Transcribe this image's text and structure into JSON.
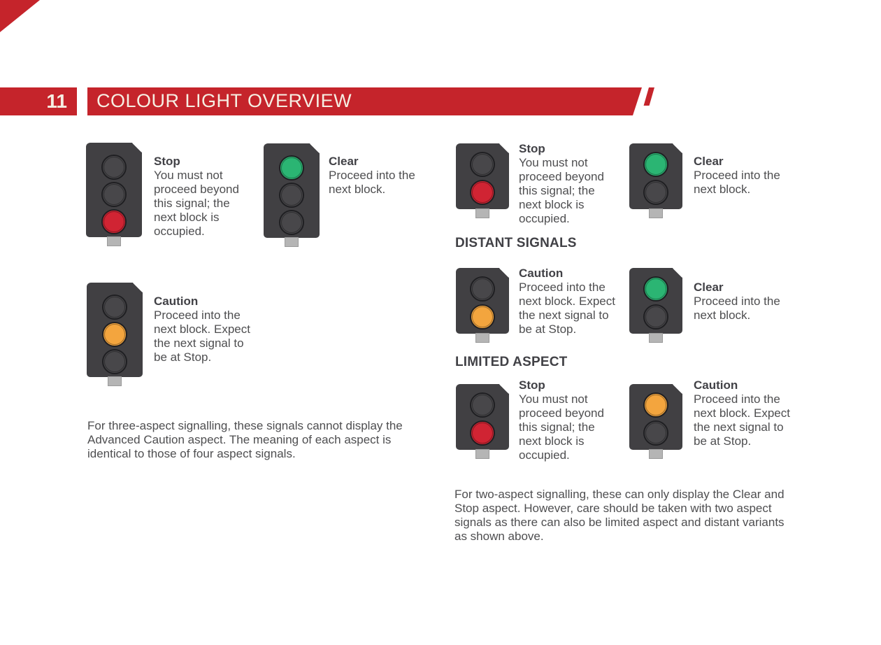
{
  "page": {
    "number": "11",
    "title": "COLOUR LIGHT OVERVIEW"
  },
  "colors": {
    "accent_red": "#c5242b",
    "banner_text": "#f6efe3",
    "signal_body": "#414043",
    "light_red": "#d02433",
    "light_green": "#2bb573",
    "light_amber": "#f3a53e",
    "stem_gray": "#b5b5b5",
    "body_text": "#4e4e50",
    "heading_text": "#414146"
  },
  "three_aspect": {
    "items": [
      {
        "name": "Stop",
        "description": "You must not\nproceed beyond\nthis signal; the\nnext block is\noccupied.",
        "aspects": 3,
        "lit_aspect": "bottom",
        "lit_color": "red"
      },
      {
        "name": "Clear",
        "description": "Proceed into the\nnext block.",
        "aspects": 3,
        "lit_aspect": "top",
        "lit_color": "green"
      },
      {
        "name": "Caution",
        "description": "Proceed into the\nnext block. Expect\nthe next signal to\nbe at Stop.",
        "aspects": 3,
        "lit_aspect": "middle",
        "lit_color": "amber"
      }
    ],
    "footnote": "For three-aspect signalling, these signals cannot display the\nAdvanced Caution aspect. The meaning of each aspect is\nidentical to those of four aspect signals."
  },
  "two_aspect": {
    "items": [
      {
        "name": "Stop",
        "description": "You must not\nproceed beyond\nthis signal; the\nnext block is\noccupied.",
        "aspects": 2,
        "lit_aspect": "bottom",
        "lit_color": "red"
      },
      {
        "name": "Clear",
        "description": "Proceed into the\nnext block.",
        "aspects": 2,
        "lit_aspect": "top",
        "lit_color": "green"
      }
    ],
    "distant_heading": "DISTANT SIGNALS",
    "distant_items": [
      {
        "name": "Caution",
        "description": "Proceed into the\nnext block. Expect\nthe next signal to\nbe at Stop.",
        "aspects": 2,
        "lit_aspect": "bottom",
        "lit_color": "amber"
      },
      {
        "name": "Clear",
        "description": "Proceed into the\nnext block.",
        "aspects": 2,
        "lit_aspect": "top",
        "lit_color": "green"
      }
    ],
    "limited_heading": "LIMITED ASPECT",
    "limited_items": [
      {
        "name": "Stop",
        "description": "You must not\nproceed beyond\nthis signal; the\nnext block is\noccupied.",
        "aspects": 2,
        "lit_aspect": "bottom",
        "lit_color": "red"
      },
      {
        "name": "Caution",
        "description": "Proceed into the\nnext block. Expect\nthe next signal to\nbe at Stop.",
        "aspects": 2,
        "lit_aspect": "top",
        "lit_color": "amber"
      }
    ],
    "footnote": "For two-aspect signalling, these can only display the Clear and\nStop aspect. However, care should be taken with two aspect\nsignals as there can also be limited aspect and distant variants\nas shown above."
  }
}
